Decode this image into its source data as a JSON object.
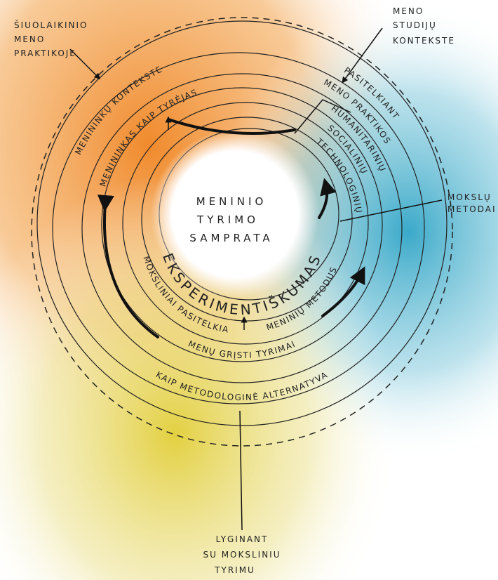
{
  "center": {
    "lines": [
      "MENINIO",
      "TYRIMO",
      "SAMPRATA"
    ]
  },
  "annotations": {
    "top_left": [
      "ŠIUOLAIKINIO",
      "MENO",
      "PRAKTIKOJE"
    ],
    "top_right": [
      "MENO",
      "STUDIJŲ",
      "KONTEKSTE"
    ],
    "right": [
      "MOKSLŲ",
      "METODAI"
    ],
    "bottom": [
      "LYGINANT",
      "SU MOKSLINIU",
      "TYRIMU"
    ]
  },
  "rings": {
    "artists_context": "MENININKŲ KONTEKSTE",
    "artist_researcher": "MENININKAS KAIP TYRĖJAS",
    "using": "PASITELKIANT",
    "art_practice": "MENO PRAKTIKOS",
    "humanities": "HUMANITARINIŲ",
    "social": "SOCIALINIŲ",
    "technology": "TECHNOLOGINIŲ",
    "experimentality": "EKSPERIMENTIŠKUMAS",
    "scientific_use": "MOKSLINIAI PASITELKIA",
    "artistic_methods": "MENINIŲ METODUS",
    "arts_based": "MENŲ GRĮSTI TYRIMAI",
    "alternative": "KAIP METODOLOGINĖ ALTERNATYVA"
  }
}
